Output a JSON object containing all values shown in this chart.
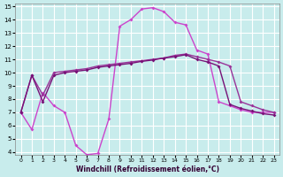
{
  "xlabel": "Windchill (Refroidissement éolien,°C)",
  "bg_color": "#c8ecec",
  "grid_color": "#ffffff",
  "xlim": [
    -0.5,
    23.5
  ],
  "ylim": [
    3.8,
    15.2
  ],
  "yticks": [
    4,
    5,
    6,
    7,
    8,
    9,
    10,
    11,
    12,
    13,
    14,
    15
  ],
  "xticks": [
    0,
    1,
    2,
    3,
    4,
    5,
    6,
    7,
    8,
    9,
    10,
    11,
    12,
    13,
    14,
    15,
    16,
    17,
    18,
    19,
    20,
    21,
    22,
    23
  ],
  "line1_x": [
    0,
    1,
    2,
    3,
    4,
    5,
    6,
    7,
    8,
    9,
    10,
    11,
    12,
    13,
    14,
    15,
    16,
    17,
    18,
    19,
    20,
    21,
    22,
    23
  ],
  "line1_y": [
    7.0,
    5.7,
    8.5,
    7.5,
    7.0,
    4.5,
    3.8,
    3.9,
    6.5,
    13.5,
    14.0,
    14.8,
    14.9,
    14.6,
    13.8,
    13.6,
    11.7,
    11.4,
    7.8,
    7.5,
    7.2,
    7.0,
    7.0,
    7.0
  ],
  "line2_x": [
    0,
    1,
    2,
    3,
    4,
    5,
    6,
    7,
    8,
    9,
    10,
    11,
    12,
    13,
    14,
    15,
    16,
    17,
    18,
    19,
    20,
    21,
    22,
    23
  ],
  "line2_y": [
    7.0,
    9.8,
    8.3,
    10.0,
    10.1,
    10.2,
    10.3,
    10.5,
    10.6,
    10.7,
    10.8,
    10.9,
    11.0,
    11.1,
    11.3,
    11.4,
    11.2,
    11.0,
    10.8,
    10.5,
    7.8,
    7.5,
    7.2,
    7.0
  ],
  "line3_x": [
    0,
    1,
    2,
    3,
    4,
    5,
    6,
    7,
    8,
    9,
    10,
    11,
    12,
    13,
    14,
    15,
    16,
    17,
    18,
    19,
    20,
    21,
    22,
    23
  ],
  "line3_y": [
    7.0,
    9.8,
    7.8,
    9.8,
    10.0,
    10.1,
    10.2,
    10.4,
    10.5,
    10.6,
    10.7,
    10.85,
    10.95,
    11.1,
    11.2,
    11.35,
    11.0,
    10.8,
    10.5,
    7.6,
    7.3,
    7.1,
    6.9,
    6.8
  ],
  "line1_color": "#cc44cc",
  "line2_color": "#993399",
  "line3_color": "#771177"
}
